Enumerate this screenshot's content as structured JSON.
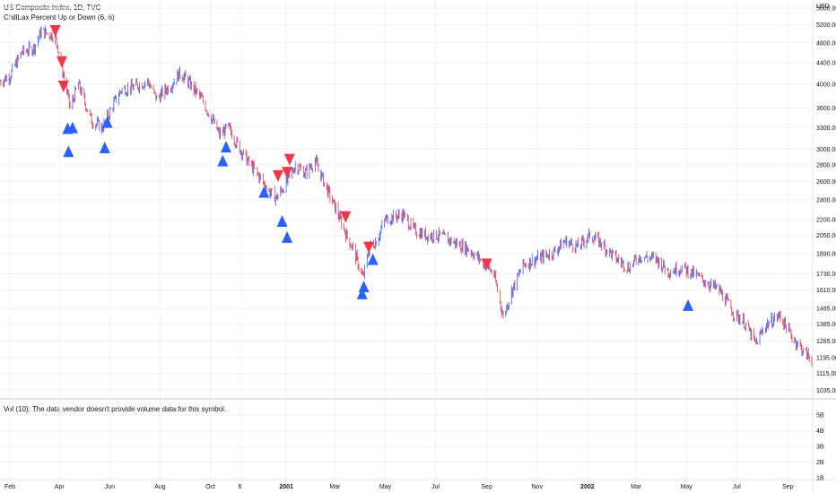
{
  "header": {
    "title": "US Composite Index, 1D, TVC",
    "indicator": "ChillLax Percent Up or Down (6, 6)"
  },
  "volume_pane": {
    "label": "Vol (10): The data vendor doesn't provide volume data for this symbol."
  },
  "price_axis": {
    "currency": "USD",
    "ticks": [
      "5600.00",
      "5200.00",
      "4800.00",
      "4400.00",
      "4000.00",
      "3600.00",
      "3300.00",
      "3000.00",
      "2800.00",
      "2600.00",
      "2400.00",
      "2200.00",
      "2050.00",
      "1890.00",
      "1730.00",
      "1610.00",
      "1485.00",
      "1385.00",
      "1285.00",
      "1195.00",
      "1115.00",
      "1035.00"
    ]
  },
  "volume_axis": {
    "ticks": [
      "5B",
      "4B",
      "3B",
      "2B",
      "1B"
    ]
  },
  "time_axis": {
    "ticks": [
      "Feb",
      "Apr",
      "Jun",
      "Aug",
      "Oct",
      "6",
      "2001",
      "Mar",
      "May",
      "Jul",
      "Sep",
      "Nov",
      "2002",
      "Mar",
      "May",
      "Jul",
      "Sep"
    ],
    "bold": [
      "2001",
      "2002"
    ]
  },
  "colors": {
    "up": "#2962ff",
    "down": "#f23645",
    "grid": "#f0f3fa",
    "axis_text": "#131722",
    "border": "#e0e3eb"
  },
  "chart_data": {
    "type": "line",
    "title": "US Composite Index, 1D, TVC",
    "ylabel": "USD",
    "y_scale": "log",
    "ylim": [
      1000,
      5800
    ],
    "x_range": [
      "2000-01-20",
      "2002-09-30"
    ],
    "series": [
      {
        "name": "US Composite Index",
        "x": [
          "2000-01-20",
          "2000-02-01",
          "2000-02-15",
          "2000-03-01",
          "2000-03-10",
          "2000-03-27",
          "2000-04-03",
          "2000-04-14",
          "2000-04-24",
          "2000-05-10",
          "2000-05-23",
          "2000-06-05",
          "2000-06-15",
          "2000-06-30",
          "2000-07-17",
          "2000-07-28",
          "2000-08-15",
          "2000-08-25",
          "2000-09-01",
          "2000-09-20",
          "2000-10-02",
          "2000-10-12",
          "2000-10-23",
          "2000-11-01",
          "2000-11-15",
          "2000-11-30",
          "2000-12-10",
          "2000-12-20",
          "2001-01-02",
          "2001-01-12",
          "2001-01-24",
          "2001-02-05",
          "2001-02-20",
          "2001-03-05",
          "2001-03-15",
          "2001-03-22",
          "2001-04-04",
          "2001-04-12",
          "2001-04-20",
          "2001-05-01",
          "2001-05-22",
          "2001-06-05",
          "2001-06-20",
          "2001-07-05",
          "2001-07-20",
          "2001-08-10",
          "2001-08-31",
          "2001-09-10",
          "2001-09-21",
          "2001-10-01",
          "2001-10-15",
          "2001-11-01",
          "2001-11-20",
          "2001-12-05",
          "2001-12-20",
          "2002-01-04",
          "2002-01-15",
          "2002-02-05",
          "2002-02-20",
          "2002-03-05",
          "2002-03-25",
          "2002-04-10",
          "2002-04-25",
          "2002-05-10",
          "2002-05-22",
          "2002-06-10",
          "2002-06-28",
          "2002-07-10",
          "2002-07-24",
          "2002-08-05",
          "2002-08-22",
          "2002-09-05",
          "2002-09-20",
          "2002-09-30"
        ],
        "values": [
          4050,
          4150,
          4600,
          4700,
          5050,
          4950,
          4400,
          3600,
          4000,
          3400,
          3300,
          3650,
          3900,
          3950,
          4050,
          3750,
          4000,
          4200,
          4100,
          3750,
          3450,
          3200,
          3300,
          3100,
          2850,
          2650,
          2500,
          2420,
          2600,
          2800,
          2700,
          2850,
          2500,
          2250,
          2050,
          1950,
          1700,
          1950,
          2000,
          2200,
          2250,
          2100,
          2050,
          2050,
          2000,
          1930,
          1800,
          1720,
          1430,
          1600,
          1800,
          1850,
          1900,
          2000,
          1950,
          2050,
          2000,
          1850,
          1780,
          1870,
          1850,
          1750,
          1780,
          1730,
          1680,
          1610,
          1450,
          1400,
          1270,
          1380,
          1440,
          1320,
          1230,
          1180
        ]
      }
    ],
    "markers": {
      "down_arrows": [
        {
          "x": "2000-03-27",
          "y": 5050
        },
        {
          "x": "2000-04-04",
          "y": 4400
        },
        {
          "x": "2000-04-06",
          "y": 3950
        },
        {
          "x": "2000-12-22",
          "y": 2660
        },
        {
          "x": "2001-01-02",
          "y": 2700
        },
        {
          "x": "2001-01-05",
          "y": 2860
        },
        {
          "x": "2001-03-14",
          "y": 2220
        },
        {
          "x": "2001-04-11",
          "y": 1940
        },
        {
          "x": "2001-09-01",
          "y": 1800
        }
      ],
      "up_arrows": [
        {
          "x": "2000-04-11",
          "y": 3300
        },
        {
          "x": "2000-04-12",
          "y": 2980
        },
        {
          "x": "2000-04-17",
          "y": 3310
        },
        {
          "x": "2000-05-26",
          "y": 3030
        },
        {
          "x": "2000-05-29",
          "y": 3390
        },
        {
          "x": "2000-10-16",
          "y": 2860
        },
        {
          "x": "2000-10-20",
          "y": 3040
        },
        {
          "x": "2000-12-05",
          "y": 2490
        },
        {
          "x": "2000-12-27",
          "y": 2190
        },
        {
          "x": "2001-01-02",
          "y": 2040
        },
        {
          "x": "2001-04-03",
          "y": 1590
        },
        {
          "x": "2001-04-05",
          "y": 1640
        },
        {
          "x": "2001-04-16",
          "y": 1850
        },
        {
          "x": "2002-05-03",
          "y": 1510
        }
      ]
    },
    "grid": true,
    "legend": "top-left"
  }
}
